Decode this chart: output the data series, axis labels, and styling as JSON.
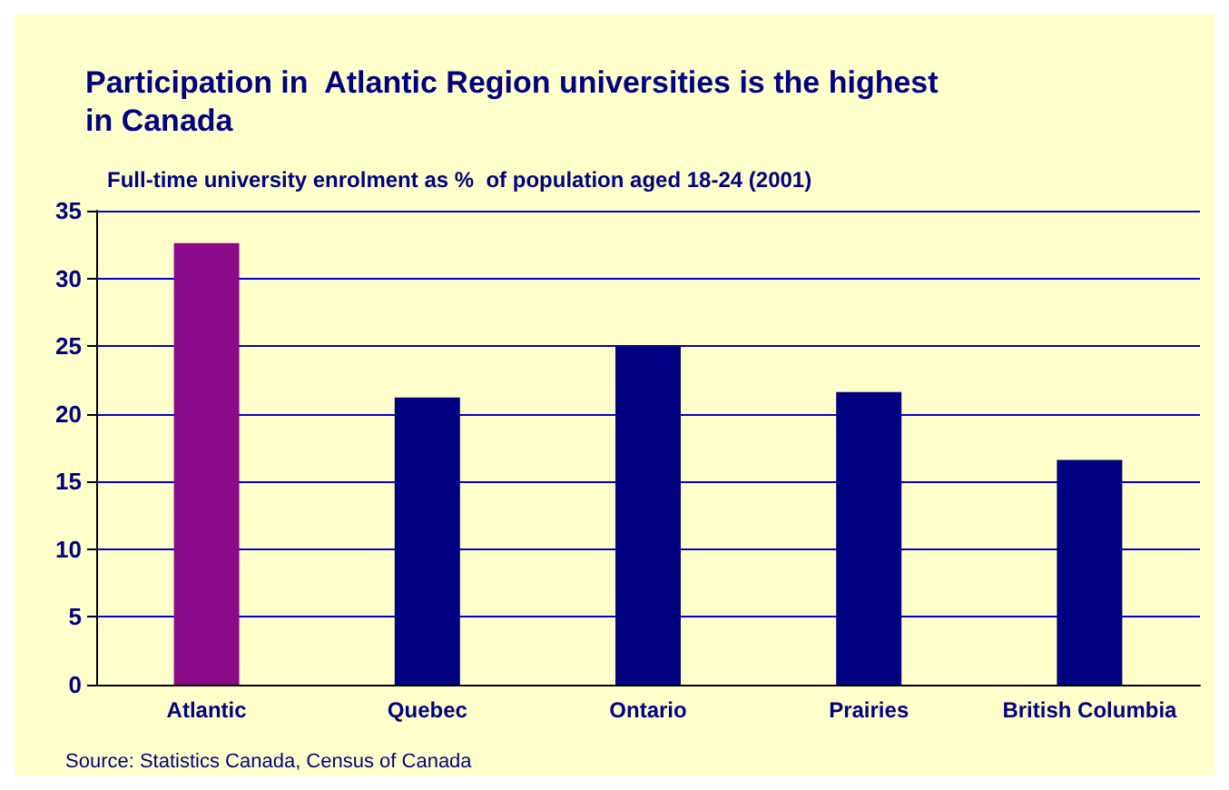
{
  "chart_data": {
    "type": "bar",
    "title": "Participation in  Atlantic Region universities is the highest\nin Canada",
    "subtitle": "Full-time university enrolment as %  of population aged 18-24 (2001)",
    "categories": [
      "Atlantic",
      "Quebec",
      "Ontario",
      "Prairies",
      "British Columbia"
    ],
    "values": [
      32.6,
      21.2,
      25,
      21.6,
      16.6
    ],
    "colors": [
      "#8a0a8a",
      "#000080",
      "#000080",
      "#000080",
      "#000080"
    ],
    "ylim": [
      0,
      35
    ],
    "yticks": [
      0,
      5,
      10,
      15,
      20,
      25,
      30,
      35
    ],
    "grid": "y",
    "annotations": [
      "Source: Statistics Canada, Census of Canada"
    ]
  }
}
